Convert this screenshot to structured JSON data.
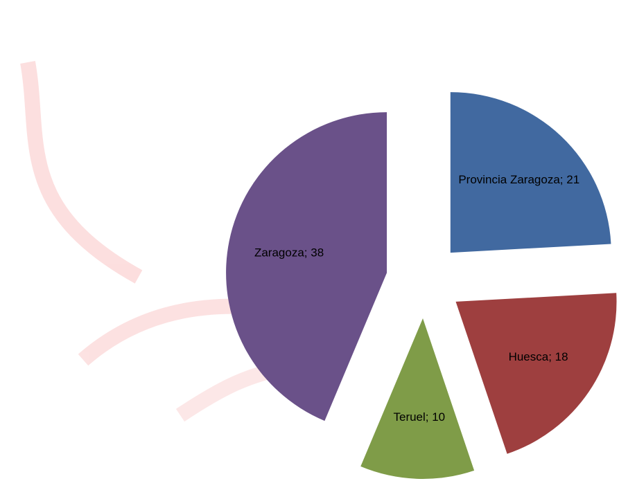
{
  "chart_data": {
    "type": "pie",
    "values": [
      21,
      18,
      10,
      38
    ],
    "value_labels": [
      "Provincia Zaragoza; 21",
      "Huesca; 18",
      "Teruel; 10",
      "Zaragoza; 38"
    ],
    "colors": [
      "#4169a0",
      "#9e3f3f",
      "#7f9c48",
      "#6a5189"
    ]
  }
}
